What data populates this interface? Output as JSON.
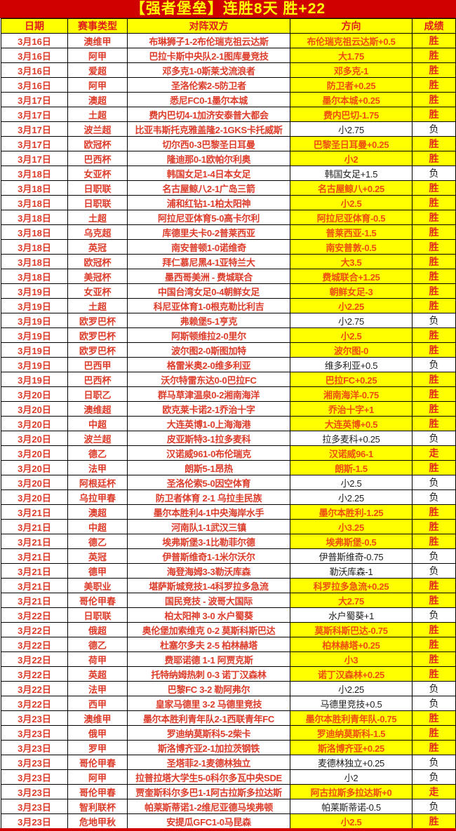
{
  "title": "【强者堡垒】连胜8天  胜+22",
  "columns": [
    "日期",
    "赛事类型",
    "对阵双方",
    "方向",
    "成绩"
  ],
  "colors": {
    "frame_red": "#d10000",
    "highlight_yellow": "#ffff00",
    "title_text": "#ffff00",
    "red_text": "#dd3c2a",
    "win_direction_text": "#ee4d0e",
    "win_result_text": "#e2271d",
    "loss_text": "#1f1f1f",
    "grid_border": "#000000"
  },
  "legend": {
    "win": "胜",
    "loss": "负",
    "push": "走"
  },
  "rows": [
    {
      "date": "3月16日",
      "league": "澳维甲",
      "match": "布琳狮子1-2布伦瑞克祖云达斯",
      "direction": "布伦瑞克祖云达斯+0.5",
      "result": "胜",
      "status": "win"
    },
    {
      "date": "3月16日",
      "league": "阿甲",
      "match": "巴拉卡斯中央队2-1图库曼竞技",
      "direction": "大1.75",
      "result": "胜",
      "status": "win"
    },
    {
      "date": "3月16日",
      "league": "爱超",
      "match": "邓多克1-0斯莱戈流浪者",
      "direction": "邓多克-1",
      "result": "胜",
      "status": "win"
    },
    {
      "date": "3月16日",
      "league": "阿甲",
      "match": "圣洛伦索2-5防卫者",
      "direction": "防卫者+0.25",
      "result": "胜",
      "status": "win"
    },
    {
      "date": "3月17日",
      "league": "澳超",
      "match": "悉尼FC0-1墨尔本城",
      "direction": "墨尔本城+0.25",
      "result": "胜",
      "status": "win"
    },
    {
      "date": "3月17日",
      "league": "土超",
      "match": "费内巴切4-1加济安泰普大都会",
      "direction": "费内巴切-1.75",
      "result": "胜",
      "status": "win"
    },
    {
      "date": "3月17日",
      "league": "波兰超",
      "match": "比亚韦斯托克雅盖隆2-1GKS卡托威斯",
      "direction": "小2.75",
      "result": "负",
      "status": "loss"
    },
    {
      "date": "3月17日",
      "league": "欧冠杯",
      "match": "切尔西0-3巴黎圣日耳曼",
      "direction": "巴黎圣日耳曼+0.25",
      "result": "胜",
      "status": "win"
    },
    {
      "date": "3月17日",
      "league": "巴西杯",
      "match": "隆迪那0-1欧帕尔利奥",
      "direction": "小2",
      "result": "胜",
      "status": "win"
    },
    {
      "date": "3月18日",
      "league": "女亚杯",
      "match": "韩国女足1-4日本女足",
      "direction": "韩国女足+1.5",
      "result": "负",
      "status": "loss"
    },
    {
      "date": "3月18日",
      "league": "日职联",
      "match": "名古屋鲸八2-1广岛三箭",
      "direction": "名古屋鲸八+0.25",
      "result": "胜",
      "status": "win"
    },
    {
      "date": "3月18日",
      "league": "日职联",
      "match": "浦和红钻1-1柏太阳神",
      "direction": "小2.5",
      "result": "胜",
      "status": "win"
    },
    {
      "date": "3月18日",
      "league": "土超",
      "match": "阿拉尼亚体育5-0高卡尔利",
      "direction": "阿拉尼亚体育-0.5",
      "result": "胜",
      "status": "win"
    },
    {
      "date": "3月18日",
      "league": "乌克超",
      "match": "库德里夫卡0-2普莱西亚",
      "direction": "普莱西亚-1.5",
      "result": "胜",
      "status": "win"
    },
    {
      "date": "3月18日",
      "league": "英冠",
      "match": "南安普顿1-0诺维奇",
      "direction": "南安普敦-0.5",
      "result": "胜",
      "status": "win"
    },
    {
      "date": "3月18日",
      "league": "欧冠杯",
      "match": "拜仁慕尼黑4-1亚特兰大",
      "direction": "大3.5",
      "result": "胜",
      "status": "win"
    },
    {
      "date": "3月18日",
      "league": "美冠杯",
      "match": "墨西哥美洲 - 费城联合",
      "direction": "费城联合+1.25",
      "result": "胜",
      "status": "win"
    },
    {
      "date": "3月19日",
      "league": "女亚杯",
      "match": "中国台湾女足0-4朝鲜女足",
      "direction": "朝鲜女足-3",
      "result": "胜",
      "status": "win"
    },
    {
      "date": "3月19日",
      "league": "土超",
      "match": "科尼亚体育1-0根克勒比利吉",
      "direction": "小2.25",
      "result": "胜",
      "status": "win"
    },
    {
      "date": "3月19日",
      "league": "欧罗巴杯",
      "match": "弗赖堡5-1亨克",
      "direction": "小2.75",
      "result": "负",
      "status": "loss"
    },
    {
      "date": "3月19日",
      "league": "欧罗巴杯",
      "match": "阿斯顿维拉2-0里尔",
      "direction": "小2.5",
      "result": "胜",
      "status": "win"
    },
    {
      "date": "3月19日",
      "league": "欧罗巴杯",
      "match": "波尔图2-0斯图加特",
      "direction": "波尔图-0",
      "result": "胜",
      "status": "win"
    },
    {
      "date": "3月19日",
      "league": "巴西甲",
      "match": "格雷米奥2-0维多利亚",
      "direction": "维多利亚+0.5",
      "result": "负",
      "status": "loss"
    },
    {
      "date": "3月19日",
      "league": "巴西杯",
      "match": "沃尔特雷东达0-0巴拉FC",
      "direction": "巴拉FC+0.25",
      "result": "胜",
      "status": "win"
    },
    {
      "date": "3月20日",
      "league": "日职乙",
      "match": "群马草津温泉0-2湘南海洋",
      "direction": "湘南海洋-0.75",
      "result": "胜",
      "status": "win"
    },
    {
      "date": "3月20日",
      "league": "澳维超",
      "match": "欧克莱卡诺2-1乔治十字",
      "direction": "乔治十字+1",
      "result": "胜",
      "status": "win"
    },
    {
      "date": "3月20日",
      "league": "中超",
      "match": "大连英博1-0上海海港",
      "direction": "大连英博+0.5",
      "result": "胜",
      "status": "win"
    },
    {
      "date": "3月20日",
      "league": "波兰超",
      "match": "皮亚斯特3-1拉多麦科",
      "direction": "拉多麦科+0.25",
      "result": "负",
      "status": "loss"
    },
    {
      "date": "3月20日",
      "league": "德乙",
      "match": "汉诺威961-0布伦瑞克",
      "direction": "汉诺威96-1",
      "result": "走",
      "status": "push"
    },
    {
      "date": "3月20日",
      "league": "法甲",
      "match": "朗斯5-1昂热",
      "direction": "朗斯-1.5",
      "result": "胜",
      "status": "win"
    },
    {
      "date": "3月20日",
      "league": "阿根廷杯",
      "match": "圣洛伦索5-0因空体育",
      "direction": "小2.5",
      "result": "负",
      "status": "loss"
    },
    {
      "date": "3月20日",
      "league": "乌拉甲春",
      "match": "防卫者体育 2-1 乌拉圭民族",
      "direction": "小2.25",
      "result": "负",
      "status": "loss"
    },
    {
      "date": "3月21日",
      "league": "澳超",
      "match": "墨尔本胜利4-1中央海岸水手",
      "direction": "墨尔本胜利-1.25",
      "result": "胜",
      "status": "win"
    },
    {
      "date": "3月21日",
      "league": "中超",
      "match": "河南队1-1武汉三镇",
      "direction": "小3.25",
      "result": "胜",
      "status": "win"
    },
    {
      "date": "3月21日",
      "league": "德乙",
      "match": "埃弗斯堡3-1比勒菲尔德",
      "direction": "埃弗斯堡-0.5",
      "result": "胜",
      "status": "win"
    },
    {
      "date": "3月21日",
      "league": "英冠",
      "match": "伊普斯维奇1-1米尔沃尔",
      "direction": "伊普斯维奇-0.75",
      "result": "负",
      "status": "loss"
    },
    {
      "date": "3月21日",
      "league": "德甲",
      "match": "海登海姆3-3勒沃库森",
      "direction": "勒沃库森-1",
      "result": "负",
      "status": "loss"
    },
    {
      "date": "3月21日",
      "league": "美职业",
      "match": "堪萨斯城竞技1-4科罗拉多急流",
      "direction": "科罗拉多急流+0.25",
      "result": "胜",
      "status": "win"
    },
    {
      "date": "3月21日",
      "league": "哥伦甲春",
      "match": "国民竞技 - 波哥大国际",
      "direction": "大2.75",
      "result": "胜",
      "status": "win"
    },
    {
      "date": "3月22日",
      "league": "日职联",
      "match": "柏太阳神 3-0 水户蜀葵",
      "direction": "水户蜀葵+1",
      "result": "负",
      "status": "loss"
    },
    {
      "date": "3月22日",
      "league": "俄超",
      "match": "奥伦堡加索维克 0-2 莫斯科斯巴达",
      "direction": "莫斯科斯巴达-0.75",
      "result": "胜",
      "status": "win"
    },
    {
      "date": "3月22日",
      "league": "德乙",
      "match": "杜塞尔多夫 2-5 柏林赫塔",
      "direction": "柏林赫塔+0.25",
      "result": "胜",
      "status": "win"
    },
    {
      "date": "3月22日",
      "league": "荷甲",
      "match": "费耶诺德 1-1 阿贾克斯",
      "direction": "小3",
      "result": "胜",
      "status": "win"
    },
    {
      "date": "3月22日",
      "league": "英超",
      "match": "托特纳姆热刺 0-3 诺丁汉森林",
      "direction": "诺丁汉森林+0.25",
      "result": "胜",
      "status": "win"
    },
    {
      "date": "3月22日",
      "league": "法甲",
      "match": "巴黎FC 3-2 勒阿弗尔",
      "direction": "小2.25",
      "result": "负",
      "status": "loss"
    },
    {
      "date": "3月22日",
      "league": "西甲",
      "match": "皇家马德里 3-2 马德里竞技",
      "direction": "马德里竞技+0.5",
      "result": "负",
      "status": "loss"
    },
    {
      "date": "3月23日",
      "league": "澳维甲",
      "match": "墨尔本胜利青年队2-1西联青年FC",
      "direction": "墨尔本胜利青年队-0.75",
      "result": "胜",
      "status": "win"
    },
    {
      "date": "3月23日",
      "league": "俄甲",
      "match": "罗迪纳莫斯科5-2柴卡",
      "direction": "罗迪纳莫斯科-1.5",
      "result": "胜",
      "status": "win"
    },
    {
      "date": "3月23日",
      "league": "罗甲",
      "match": "斯洛博齐亚2-1加拉茨钢铁",
      "direction": "斯洛博齐亚+0.25",
      "result": "胜",
      "status": "win"
    },
    {
      "date": "3月23日",
      "league": "哥伦甲春",
      "match": "圣塔菲2-1麦德林独立",
      "direction": "麦德林独立+0.25",
      "result": "负",
      "status": "loss"
    },
    {
      "date": "3月23日",
      "league": "阿甲",
      "match": "拉普拉塔大学生5-0科尔多瓦中央SDE",
      "direction": "小2",
      "result": "负",
      "status": "loss"
    },
    {
      "date": "3月23日",
      "league": "哥伦甲春",
      "match": "贾奎斯科尔多巴1-1阿古拉斯多拉达斯",
      "direction": "阿古拉斯多拉达斯+0",
      "result": "走",
      "status": "push"
    },
    {
      "date": "3月23日",
      "league": "智利联杯",
      "match": "帕莱斯蒂诺1-2维尼亚德马埃弗顿",
      "direction": "帕莱斯蒂诺-0.5",
      "result": "负",
      "status": "loss"
    },
    {
      "date": "3月23日",
      "league": "危地甲秋",
      "match": "安提瓜GFC1-0马昆森",
      "direction": "小2.5",
      "result": "胜",
      "status": "win"
    }
  ]
}
